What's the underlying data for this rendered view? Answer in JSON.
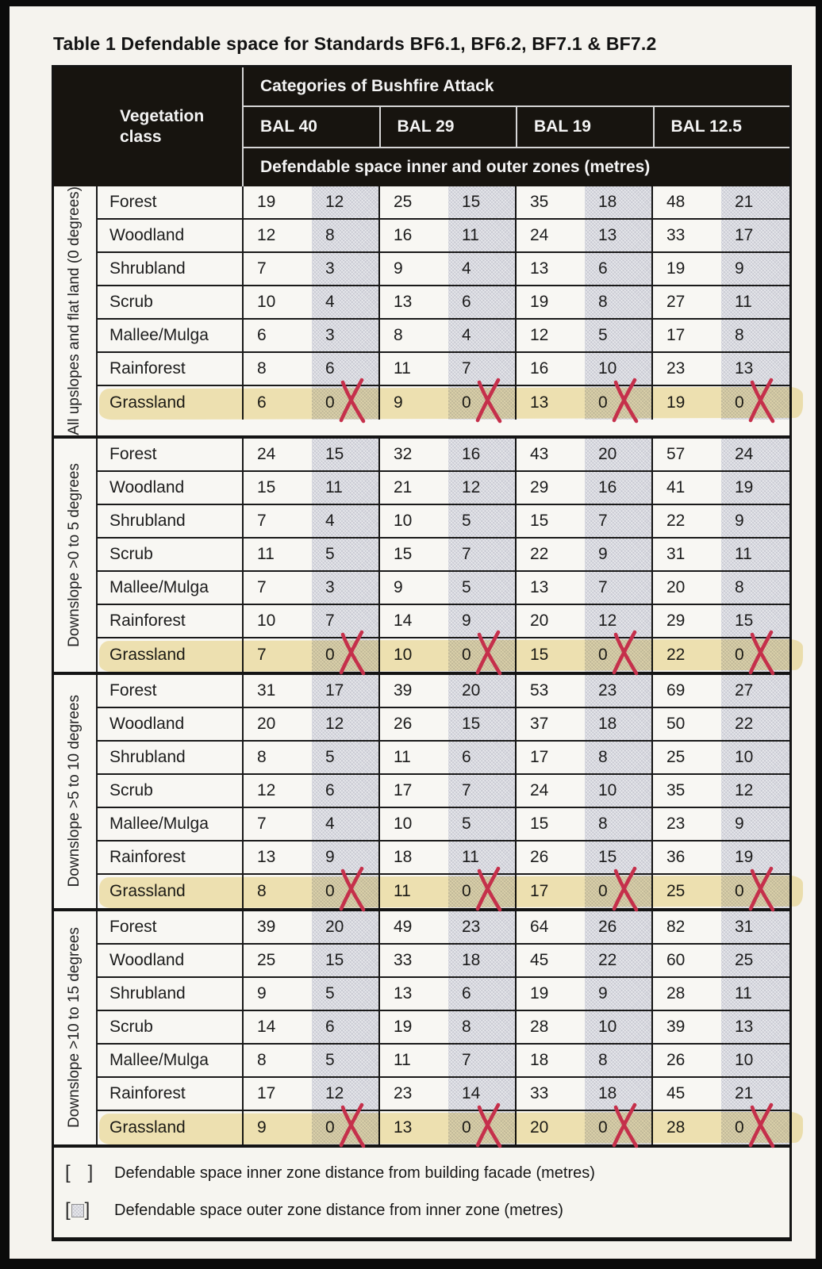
{
  "page": {
    "title": "Table 1 Defendable space for Standards BF6.1, BF6.2, BF7.1 & BF7.2"
  },
  "colors": {
    "header_bg": "#17140f",
    "outer_zone_fill": "#c8c9d2",
    "highlighter": "#eeda8e",
    "cross_mark": "#c5304b"
  },
  "table": {
    "header": {
      "vegetation_class": "Vegetation class",
      "categories": "Categories of Bushfire Attack",
      "bal_columns": [
        "BAL 40",
        "BAL 29",
        "BAL 19",
        "BAL 12.5"
      ],
      "zones_note": "Defendable space inner and outer zones (metres)"
    },
    "groups": [
      {
        "label": "All upslopes and flat land (0 degrees)",
        "rows": [
          {
            "vegetation": "Forest",
            "values": [
              [
                19,
                12
              ],
              [
                25,
                15
              ],
              [
                35,
                18
              ],
              [
                48,
                21
              ]
            ],
            "highlight": false,
            "crossed": false
          },
          {
            "vegetation": "Woodland",
            "values": [
              [
                12,
                8
              ],
              [
                16,
                11
              ],
              [
                24,
                13
              ],
              [
                33,
                17
              ]
            ],
            "highlight": false,
            "crossed": false
          },
          {
            "vegetation": "Shrubland",
            "values": [
              [
                7,
                3
              ],
              [
                9,
                4
              ],
              [
                13,
                6
              ],
              [
                19,
                9
              ]
            ],
            "highlight": false,
            "crossed": false
          },
          {
            "vegetation": "Scrub",
            "values": [
              [
                10,
                4
              ],
              [
                13,
                6
              ],
              [
                19,
                8
              ],
              [
                27,
                11
              ]
            ],
            "highlight": false,
            "crossed": false
          },
          {
            "vegetation": "Mallee/Mulga",
            "values": [
              [
                6,
                3
              ],
              [
                8,
                4
              ],
              [
                12,
                5
              ],
              [
                17,
                8
              ]
            ],
            "highlight": false,
            "crossed": false
          },
          {
            "vegetation": "Rainforest",
            "values": [
              [
                8,
                6
              ],
              [
                11,
                7
              ],
              [
                16,
                10
              ],
              [
                23,
                13
              ]
            ],
            "highlight": false,
            "crossed": false
          },
          {
            "vegetation": "Grassland",
            "values": [
              [
                6,
                0
              ],
              [
                9,
                0
              ],
              [
                13,
                0
              ],
              [
                19,
                0
              ]
            ],
            "highlight": true,
            "crossed": true
          }
        ]
      },
      {
        "label": "Downslope >0 to 5 degrees",
        "rows": [
          {
            "vegetation": "Forest",
            "values": [
              [
                24,
                15
              ],
              [
                32,
                16
              ],
              [
                43,
                20
              ],
              [
                57,
                24
              ]
            ],
            "highlight": false,
            "crossed": false
          },
          {
            "vegetation": "Woodland",
            "values": [
              [
                15,
                11
              ],
              [
                21,
                12
              ],
              [
                29,
                16
              ],
              [
                41,
                19
              ]
            ],
            "highlight": false,
            "crossed": false
          },
          {
            "vegetation": "Shrubland",
            "values": [
              [
                7,
                4
              ],
              [
                10,
                5
              ],
              [
                15,
                7
              ],
              [
                22,
                9
              ]
            ],
            "highlight": false,
            "crossed": false
          },
          {
            "vegetation": "Scrub",
            "values": [
              [
                11,
                5
              ],
              [
                15,
                7
              ],
              [
                22,
                9
              ],
              [
                31,
                11
              ]
            ],
            "highlight": false,
            "crossed": false
          },
          {
            "vegetation": "Mallee/Mulga",
            "values": [
              [
                7,
                3
              ],
              [
                9,
                5
              ],
              [
                13,
                7
              ],
              [
                20,
                8
              ]
            ],
            "highlight": false,
            "crossed": false
          },
          {
            "vegetation": "Rainforest",
            "values": [
              [
                10,
                7
              ],
              [
                14,
                9
              ],
              [
                20,
                12
              ],
              [
                29,
                15
              ]
            ],
            "highlight": false,
            "crossed": false
          },
          {
            "vegetation": "Grassland",
            "values": [
              [
                7,
                0
              ],
              [
                10,
                0
              ],
              [
                15,
                0
              ],
              [
                22,
                0
              ]
            ],
            "highlight": true,
            "crossed": true
          }
        ]
      },
      {
        "label": "Downslope >5 to 10 degrees",
        "rows": [
          {
            "vegetation": "Forest",
            "values": [
              [
                31,
                17
              ],
              [
                39,
                20
              ],
              [
                53,
                23
              ],
              [
                69,
                27
              ]
            ],
            "highlight": false,
            "crossed": false
          },
          {
            "vegetation": "Woodland",
            "values": [
              [
                20,
                12
              ],
              [
                26,
                15
              ],
              [
                37,
                18
              ],
              [
                50,
                22
              ]
            ],
            "highlight": false,
            "crossed": false
          },
          {
            "vegetation": "Shrubland",
            "values": [
              [
                8,
                5
              ],
              [
                11,
                6
              ],
              [
                17,
                8
              ],
              [
                25,
                10
              ]
            ],
            "highlight": false,
            "crossed": false
          },
          {
            "vegetation": "Scrub",
            "values": [
              [
                12,
                6
              ],
              [
                17,
                7
              ],
              [
                24,
                10
              ],
              [
                35,
                12
              ]
            ],
            "highlight": false,
            "crossed": false
          },
          {
            "vegetation": "Mallee/Mulga",
            "values": [
              [
                7,
                4
              ],
              [
                10,
                5
              ],
              [
                15,
                8
              ],
              [
                23,
                9
              ]
            ],
            "highlight": false,
            "crossed": false
          },
          {
            "vegetation": "Rainforest",
            "values": [
              [
                13,
                9
              ],
              [
                18,
                11
              ],
              [
                26,
                15
              ],
              [
                36,
                19
              ]
            ],
            "highlight": false,
            "crossed": false
          },
          {
            "vegetation": "Grassland",
            "values": [
              [
                8,
                0
              ],
              [
                11,
                0
              ],
              [
                17,
                0
              ],
              [
                25,
                0
              ]
            ],
            "highlight": true,
            "crossed": true
          }
        ]
      },
      {
        "label": "Downslope >10 to 15 degrees",
        "rows": [
          {
            "vegetation": "Forest",
            "values": [
              [
                39,
                20
              ],
              [
                49,
                23
              ],
              [
                64,
                26
              ],
              [
                82,
                31
              ]
            ],
            "highlight": false,
            "crossed": false
          },
          {
            "vegetation": "Woodland",
            "values": [
              [
                25,
                15
              ],
              [
                33,
                18
              ],
              [
                45,
                22
              ],
              [
                60,
                25
              ]
            ],
            "highlight": false,
            "crossed": false
          },
          {
            "vegetation": "Shrubland",
            "values": [
              [
                9,
                5
              ],
              [
                13,
                6
              ],
              [
                19,
                9
              ],
              [
                28,
                11
              ]
            ],
            "highlight": false,
            "crossed": false
          },
          {
            "vegetation": "Scrub",
            "values": [
              [
                14,
                6
              ],
              [
                19,
                8
              ],
              [
                28,
                10
              ],
              [
                39,
                13
              ]
            ],
            "highlight": false,
            "crossed": false
          },
          {
            "vegetation": "Mallee/Mulga",
            "values": [
              [
                8,
                5
              ],
              [
                11,
                7
              ],
              [
                18,
                8
              ],
              [
                26,
                10
              ]
            ],
            "highlight": false,
            "crossed": false
          },
          {
            "vegetation": "Rainforest",
            "values": [
              [
                17,
                12
              ],
              [
                23,
                14
              ],
              [
                33,
                18
              ],
              [
                45,
                21
              ]
            ],
            "highlight": false,
            "crossed": false
          },
          {
            "vegetation": "Grassland",
            "values": [
              [
                9,
                0
              ],
              [
                13,
                0
              ],
              [
                20,
                0
              ],
              [
                28,
                0
              ]
            ],
            "highlight": true,
            "crossed": true
          }
        ]
      }
    ],
    "legend": {
      "items": [
        {
          "open": "[",
          "close": "]",
          "symbol": "inner-zone-empty",
          "text": "Defendable space inner zone distance from building facade (metres)"
        },
        {
          "open": "[",
          "close": "]",
          "symbol": "outer-zone-shaded",
          "text": "Defendable space outer zone distance from inner zone (metres)"
        }
      ]
    }
  }
}
